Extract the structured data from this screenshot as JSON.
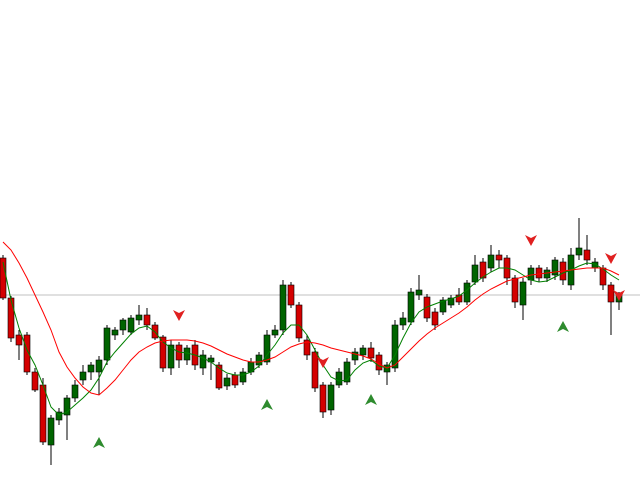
{
  "chart_data": {
    "type": "candlestick",
    "categories": [
      null,
      null,
      null,
      null,
      null,
      null,
      null,
      null,
      null,
      null,
      null,
      null,
      null,
      null,
      null,
      null,
      null,
      null,
      null,
      null,
      null,
      null,
      null,
      null,
      null,
      null,
      null,
      null,
      null,
      null,
      null,
      null,
      null,
      null,
      null,
      null,
      null,
      null,
      null,
      null,
      null,
      null,
      null,
      null,
      null,
      null,
      null,
      null,
      null,
      null,
      null,
      null,
      null,
      null,
      null,
      null,
      null,
      null,
      null,
      null,
      null,
      null,
      null,
      null,
      null,
      null,
      null,
      null,
      null,
      null,
      null,
      null,
      null,
      null,
      null,
      null,
      null,
      null
    ],
    "open": [
      222,
      182,
      145,
      145,
      108,
      95,
      35,
      60,
      65,
      82,
      100,
      108,
      108,
      120,
      145,
      150,
      148,
      160,
      165,
      155,
      143,
      112,
      135,
      120,
      135,
      112,
      118,
      115,
      94,
      105,
      98,
      108,
      115,
      118,
      145,
      150,
      195,
      175,
      140,
      128,
      95,
      70,
      95,
      98,
      120,
      125,
      132,
      125,
      108,
      112,
      155,
      158,
      185,
      183,
      168,
      168,
      175,
      185,
      178,
      198,
      218,
      212,
      225,
      222,
      202,
      175,
      200,
      212,
      202,
      205,
      218,
      195,
      225,
      230,
      212,
      212,
      195,
      178
    ],
    "high": [
      225,
      184,
      150,
      148,
      112,
      102,
      65,
      72,
      85,
      100,
      115,
      118,
      124,
      155,
      153,
      162,
      165,
      175,
      172,
      158,
      145,
      140,
      138,
      135,
      140,
      130,
      125,
      118,
      106,
      108,
      112,
      122,
      128,
      150,
      155,
      200,
      198,
      178,
      145,
      132,
      98,
      98,
      112,
      122,
      132,
      135,
      138,
      128,
      118,
      160,
      168,
      192,
      205,
      186,
      172,
      183,
      185,
      192,
      200,
      225,
      222,
      235,
      230,
      225,
      205,
      202,
      215,
      215,
      213,
      223,
      222,
      232,
      262,
      245,
      222,
      215,
      198,
      188
    ],
    "low": [
      180,
      138,
      120,
      105,
      88,
      35,
      15,
      55,
      40,
      78,
      95,
      100,
      85,
      115,
      140,
      145,
      145,
      155,
      150,
      140,
      108,
      105,
      112,
      115,
      110,
      105,
      100,
      90,
      90,
      92,
      95,
      105,
      112,
      115,
      142,
      145,
      172,
      138,
      120,
      88,
      62,
      65,
      92,
      95,
      115,
      120,
      118,
      105,
      95,
      108,
      150,
      155,
      180,
      158,
      150,
      165,
      172,
      175,
      175,
      195,
      198,
      208,
      212,
      195,
      172,
      160,
      195,
      198,
      198,
      200,
      195,
      190,
      220,
      215,
      208,
      190,
      145,
      170
    ],
    "close": [
      182,
      142,
      135,
      108,
      90,
      38,
      62,
      68,
      82,
      95,
      108,
      115,
      120,
      152,
      150,
      160,
      162,
      165,
      155,
      142,
      112,
      135,
      120,
      132,
      115,
      125,
      122,
      92,
      102,
      95,
      108,
      118,
      125,
      145,
      150,
      195,
      175,
      142,
      125,
      92,
      68,
      95,
      108,
      118,
      128,
      132,
      122,
      110,
      115,
      155,
      162,
      188,
      190,
      162,
      155,
      180,
      182,
      178,
      197,
      215,
      202,
      225,
      220,
      202,
      178,
      198,
      212,
      202,
      210,
      220,
      200,
      225,
      232,
      220,
      218,
      195,
      178,
      185
    ],
    "up_color": "#006400",
    "down_color": "#d40000",
    "ylim": [
      0,
      480
    ],
    "series": [
      {
        "color": "#008000",
        "values": [
          218,
          180,
          152,
          130,
          115,
          95,
          73,
          65,
          68,
          75,
          82,
          90,
          102,
          118,
          128,
          137,
          146,
          152,
          154,
          148,
          138,
          132,
          128,
          127,
          125,
          122,
          118,
          112,
          107,
          105,
          105,
          108,
          114,
          125,
          135,
          147,
          155,
          155,
          145,
          130,
          115,
          103,
          99,
          100,
          110,
          117,
          120,
          114,
          112,
          125,
          142,
          157,
          168,
          173,
          176,
          179,
          181,
          184,
          190,
          197,
          203,
          208,
          212,
          212,
          210,
          205,
          200,
          198,
          199,
          203,
          207,
          210,
          214,
          217,
          216,
          211,
          205,
          200
        ]
      },
      {
        "color": "#ff0000",
        "values": [
          238,
          230,
          217,
          202,
          185,
          168,
          150,
          128,
          113,
          102,
          93,
          87,
          85,
          92,
          100,
          110,
          120,
          128,
          133,
          137,
          139,
          140,
          140,
          140,
          139,
          137,
          134,
          130,
          126,
          123,
          120,
          118,
          118,
          120,
          123,
          128,
          133,
          136,
          138,
          137,
          135,
          132,
          130,
          128,
          126,
          124,
          121,
          116,
          112,
          115,
          123,
          131,
          139,
          146,
          152,
          157,
          162,
          167,
          173,
          180,
          186,
          191,
          195,
          199,
          201,
          203,
          205,
          206,
          207,
          208,
          209,
          210,
          211,
          212,
          212,
          212,
          209,
          205
        ]
      }
    ],
    "signals": {
      "buy": {
        "color": "#2e8b2e",
        "x": [
          12,
          33,
          46,
          70
        ],
        "values": [
          37,
          75,
          80,
          153
        ]
      },
      "sell": {
        "color": "#e02020",
        "x": [
          22,
          40,
          66,
          76,
          77
        ],
        "values": [
          165,
          118,
          240,
          222,
          185
        ]
      }
    },
    "hline": {
      "value": 185,
      "color": "#c0c0c0"
    }
  }
}
